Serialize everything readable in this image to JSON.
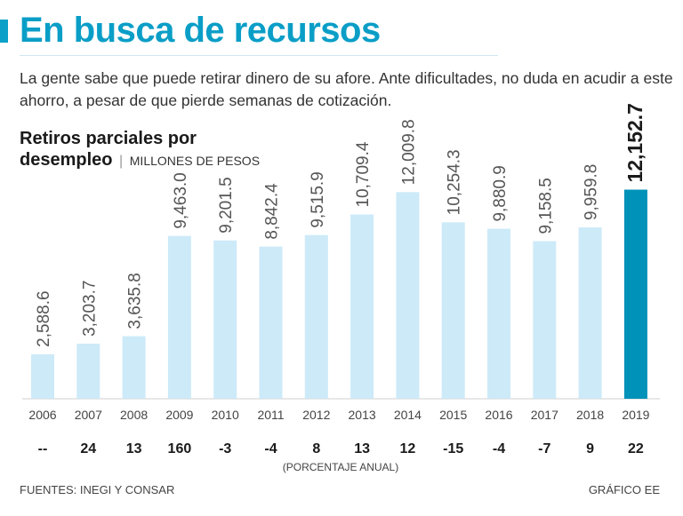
{
  "header": {
    "title": "En busca de recursos",
    "subtitle": "La gente sabe que puede retirar dinero de su afore. Ante dificultades, no duda en acudir a este ahorro, a pesar de que pierde semanas de cotización."
  },
  "colors": {
    "accent": "#0aa0c8",
    "bar_default": "#cdeaf8",
    "bar_highlight": "#0092b8",
    "text_dark": "#1a1a1a",
    "text_mid": "#555555"
  },
  "chart_data": {
    "type": "bar",
    "title_line1": "Retiros parciales por",
    "title_line2": "desempleo",
    "unit_label": "MILLONES DE PESOS",
    "categories": [
      "2006",
      "2007",
      "2008",
      "2009",
      "2010",
      "2011",
      "2012",
      "2013",
      "2014",
      "2015",
      "2016",
      "2017",
      "2018",
      "2019"
    ],
    "values": [
      2588.6,
      3203.7,
      3635.8,
      9463.0,
      9201.5,
      8842.4,
      9515.9,
      10709.4,
      12009.8,
      10254.3,
      9880.9,
      9158.5,
      9959.8,
      12152.7
    ],
    "value_labels": [
      "2,588.6",
      "3,203.7",
      "3,635.8",
      "9,463.0",
      "9,201.5",
      "8,842.4",
      "9,515.9",
      "10,709.4",
      "12,009.8",
      "10,254.3",
      "9,880.9",
      "9,158.5",
      "9,959.8",
      "12,152.7"
    ],
    "highlight_index": 13,
    "ylim": [
      0,
      16000
    ],
    "pct_change": [
      "--",
      "24",
      "13",
      "160",
      "-3",
      "-4",
      "8",
      "13",
      "12",
      "-15",
      "-4",
      "-7",
      "9",
      "22"
    ],
    "pct_label": "(PORCENTAJE ANUAL)"
  },
  "footer": {
    "sources": "FUENTES: INEGI Y CONSAR",
    "credit": "GRÁFICO EE"
  }
}
